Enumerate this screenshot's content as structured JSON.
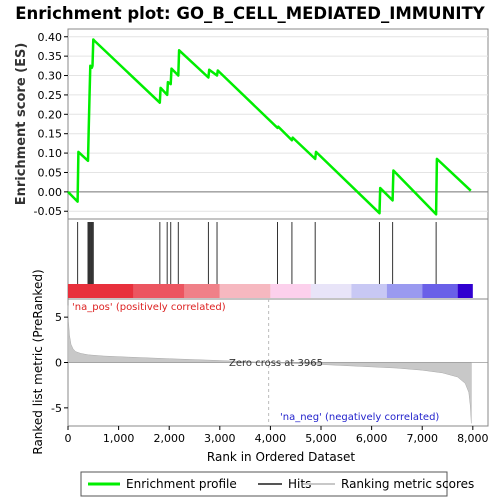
{
  "chart_data": {
    "type": "line",
    "title": "Enrichment plot: GO_B_CELL_MEDIATED_IMMUNITY",
    "es_panel": {
      "ylabel": "Enrichment score (ES)",
      "ylim": [
        -0.07,
        0.42
      ],
      "yticks": [
        "-0.05",
        "0.00",
        "0.05",
        "0.10",
        "0.15",
        "0.20",
        "0.25",
        "0.30",
        "0.35",
        "0.40"
      ],
      "series": [
        {
          "name": "Enrichment profile",
          "color": "#00ee00",
          "x": [
            0,
            190,
            205,
            395,
            410,
            425,
            440,
            455,
            470,
            485,
            500,
            520,
            1815,
            1830,
            1960,
            1975,
            2030,
            2045,
            2180,
            2195,
            2775,
            2790,
            2945,
            2960,
            4140,
            4155,
            4425,
            4440,
            4885,
            4900,
            6155,
            6170,
            6415,
            6430,
            7275,
            7290,
            7960
          ],
          "y": [
            0.0,
            -0.025,
            0.103,
            0.08,
            0.16,
            0.245,
            0.325,
            0.32,
            0.32,
            0.325,
            0.393,
            0.39,
            0.23,
            0.268,
            0.25,
            0.283,
            0.278,
            0.318,
            0.3,
            0.365,
            0.295,
            0.315,
            0.3,
            0.313,
            0.165,
            0.168,
            0.133,
            0.14,
            0.085,
            0.103,
            -0.055,
            0.01,
            -0.022,
            0.055,
            -0.058,
            0.085,
            0.003
          ]
        }
      ]
    },
    "hits_panel": {
      "positions": [
        190,
        395,
        410,
        425,
        440,
        455,
        470,
        485,
        500,
        1815,
        1960,
        2030,
        2180,
        2775,
        2945,
        4140,
        4425,
        4885,
        6155,
        6415,
        7275
      ],
      "color_bar": [
        "#e8303c",
        "#ec5560",
        "#f08088",
        "#f6b8c0",
        "#fcd0ec",
        "#e8e4f8",
        "#c8c8f4",
        "#9a9af0",
        "#6a60e8",
        "#3000d0"
      ],
      "color_bar_breaks": [
        0,
        1300,
        2300,
        3000,
        4000,
        4800,
        5600,
        6300,
        7000,
        7700,
        8000
      ]
    },
    "metric_panel": {
      "ylabel": "Ranked list metric (PreRanked)",
      "xlabel": "Rank in Ordered Dataset",
      "ylim": [
        -7,
        7
      ],
      "yticks": [
        "-5",
        "0",
        "5"
      ],
      "xlim": [
        0,
        8300
      ],
      "xticks": [
        "0",
        "1,000",
        "2,000",
        "3,000",
        "4,000",
        "5,000",
        "6,000",
        "7,000",
        "8,000"
      ],
      "zero_cross_label": "Zero cross at 3965",
      "zero_cross_x": 3965,
      "pos_label": "'na_pos' (positively correlated)",
      "neg_label": "'na_neg' (negatively correlated)",
      "curve_x": [
        0,
        10,
        30,
        60,
        100,
        150,
        250,
        400,
        700,
        1200,
        2000,
        3000,
        3965,
        5000,
        6000,
        6500,
        7000,
        7400,
        7700,
        7850,
        7920,
        7950,
        7970
      ],
      "curve_y": [
        6.3,
        4.5,
        3.0,
        2.0,
        1.5,
        1.2,
        1.0,
        0.85,
        0.72,
        0.6,
        0.42,
        0.22,
        0.0,
        -0.22,
        -0.48,
        -0.62,
        -0.85,
        -1.15,
        -1.6,
        -2.3,
        -3.3,
        -4.8,
        -6.7
      ]
    },
    "legend": [
      {
        "label": "Enrichment profile",
        "color": "#00ee00"
      },
      {
        "label": "Hits",
        "color": "#555555"
      },
      {
        "label": "Ranking metric scores",
        "color": "#c8c8c8"
      }
    ]
  }
}
